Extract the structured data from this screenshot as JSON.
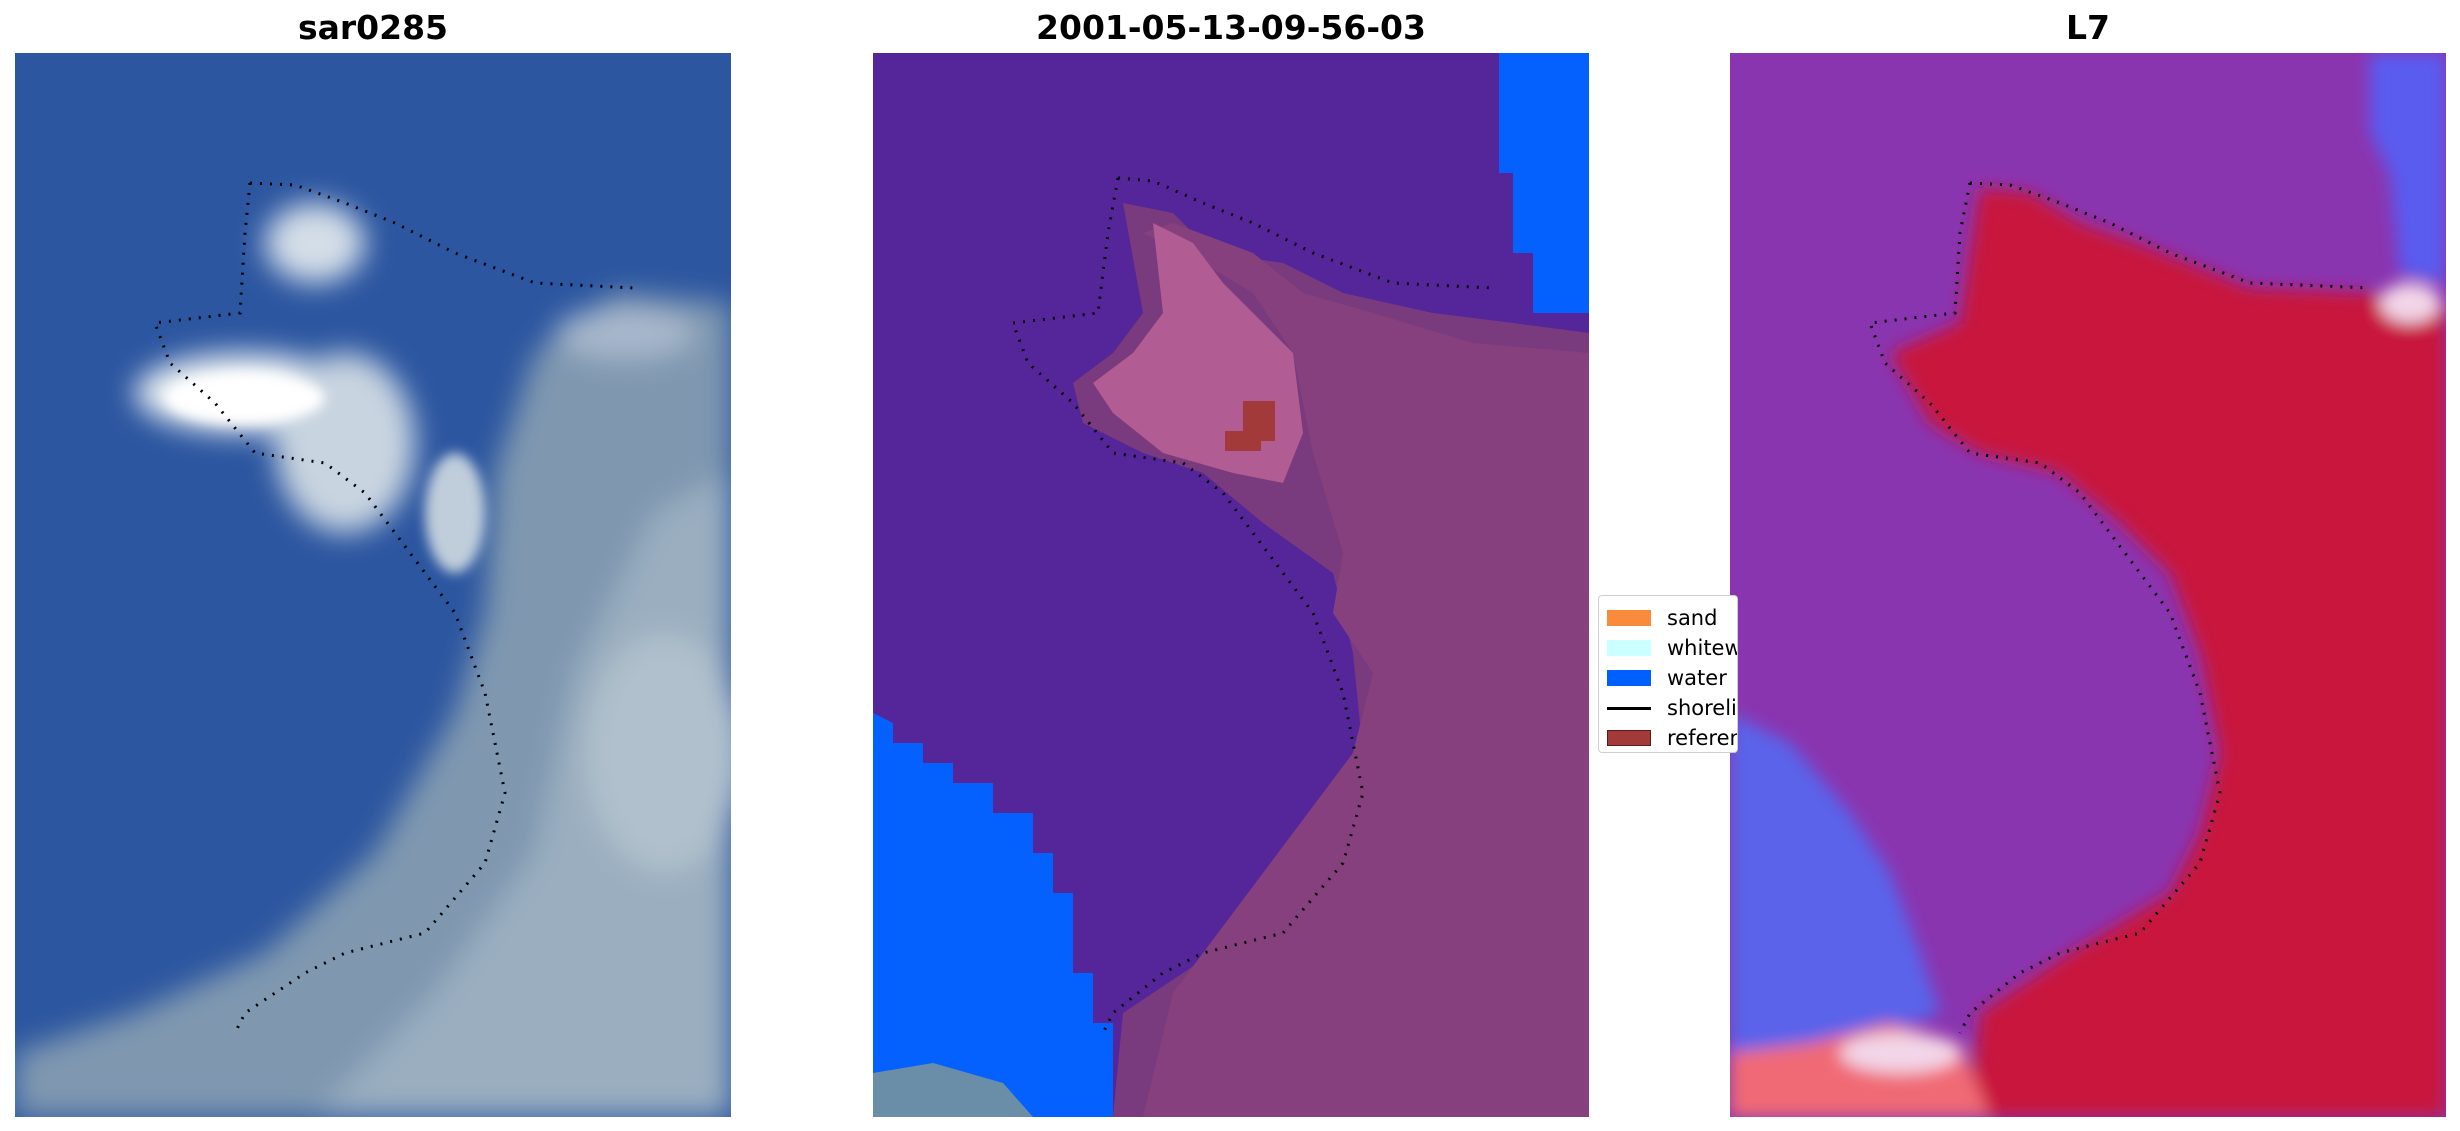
{
  "panels": [
    {
      "title": "sar0285"
    },
    {
      "title": "2001-05-13-09-56-03"
    },
    {
      "title": "L7"
    }
  ],
  "legend": {
    "items": [
      {
        "label": "sand",
        "color": "#fb8b3c"
      },
      {
        "label": "whitewater",
        "color": "#ccffff"
      },
      {
        "label": "water",
        "color": "#0060ff"
      },
      {
        "label": "shoreline",
        "color": "#000000"
      },
      {
        "label": "reference",
        "color": "#a33a3a"
      }
    ]
  },
  "colors": {
    "rgb_water": "#2c56a0",
    "classified_background": "#55269a",
    "classified_water": "#0561fd",
    "mndwi_land": "#c8163e",
    "mndwi_water": "#8a35b0"
  }
}
